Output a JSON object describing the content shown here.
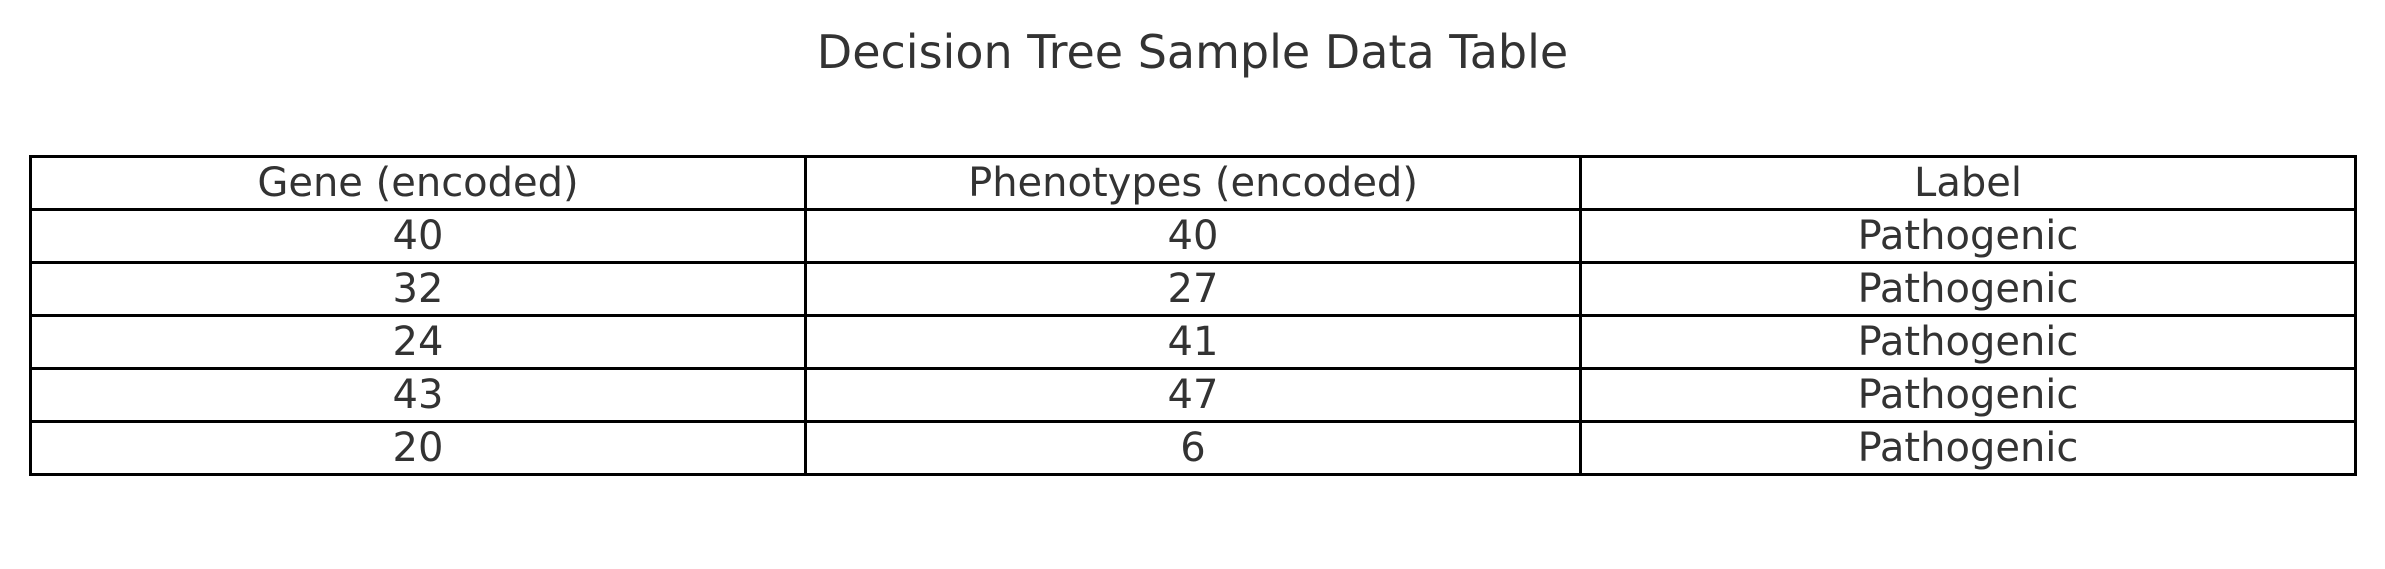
{
  "chart_data": {
    "type": "table",
    "title": "Decision Tree Sample Data Table",
    "columns": [
      "Gene (encoded)",
      "Phenotypes (encoded)",
      "Label"
    ],
    "rows": [
      [
        "40",
        "40",
        "Pathogenic"
      ],
      [
        "32",
        "27",
        "Pathogenic"
      ],
      [
        "24",
        "41",
        "Pathogenic"
      ],
      [
        "43",
        "47",
        "Pathogenic"
      ],
      [
        "20",
        "6",
        "Pathogenic"
      ]
    ],
    "border_color": "#000000",
    "text_color": "#333333"
  }
}
